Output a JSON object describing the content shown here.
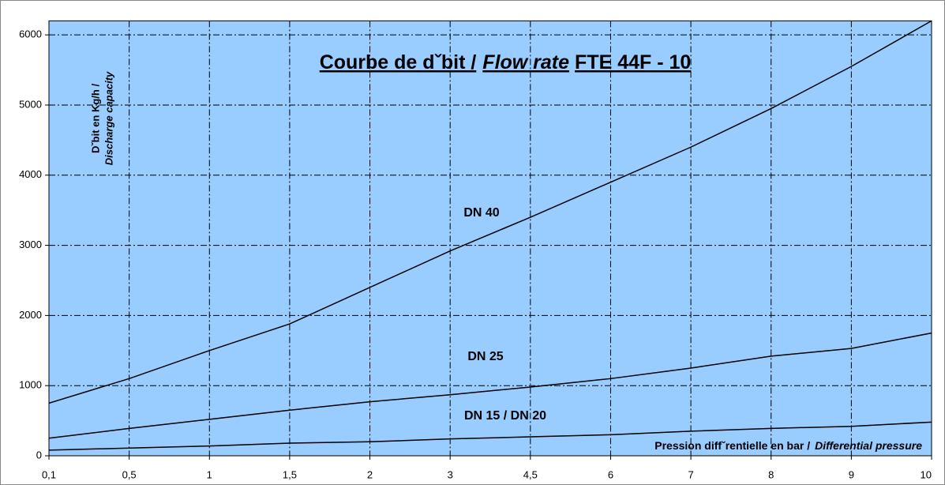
{
  "chart_data": {
    "type": "line",
    "title": [
      "Courbe de dˇbit /",
      "Flow rate",
      "FTE 44F - 10"
    ],
    "y_label": [
      "Dˇbit en Kg/h /",
      "Discharge capacity"
    ],
    "x_label": [
      "Pression diffˇrentielle en bar /",
      "Differential pressure"
    ],
    "categories": [
      "0,1",
      "0,5",
      "1",
      "1,5",
      "2",
      "3",
      "4,5",
      "6",
      "7",
      "8",
      "9",
      "10"
    ],
    "series": [
      {
        "name": "DN 40",
        "color": "#000000",
        "values": [
          750,
          1100,
          1500,
          1880,
          2400,
          2920,
          3400,
          3900,
          4400,
          4950,
          5550,
          6200
        ]
      },
      {
        "name": "DN 25",
        "color": "#000000",
        "values": [
          250,
          390,
          520,
          650,
          770,
          870,
          980,
          1100,
          1250,
          1420,
          1530,
          1750
        ]
      },
      {
        "name": "DN 15 / DN 20",
        "color": "#000000",
        "values": [
          80,
          110,
          140,
          180,
          200,
          240,
          270,
          300,
          350,
          390,
          420,
          480
        ]
      }
    ],
    "ylim": [
      0,
      6200
    ],
    "yticks": [
      0,
      1000,
      2000,
      3000,
      4000,
      5000,
      6000
    ],
    "grid": true,
    "plot_background": "#99ccff"
  }
}
